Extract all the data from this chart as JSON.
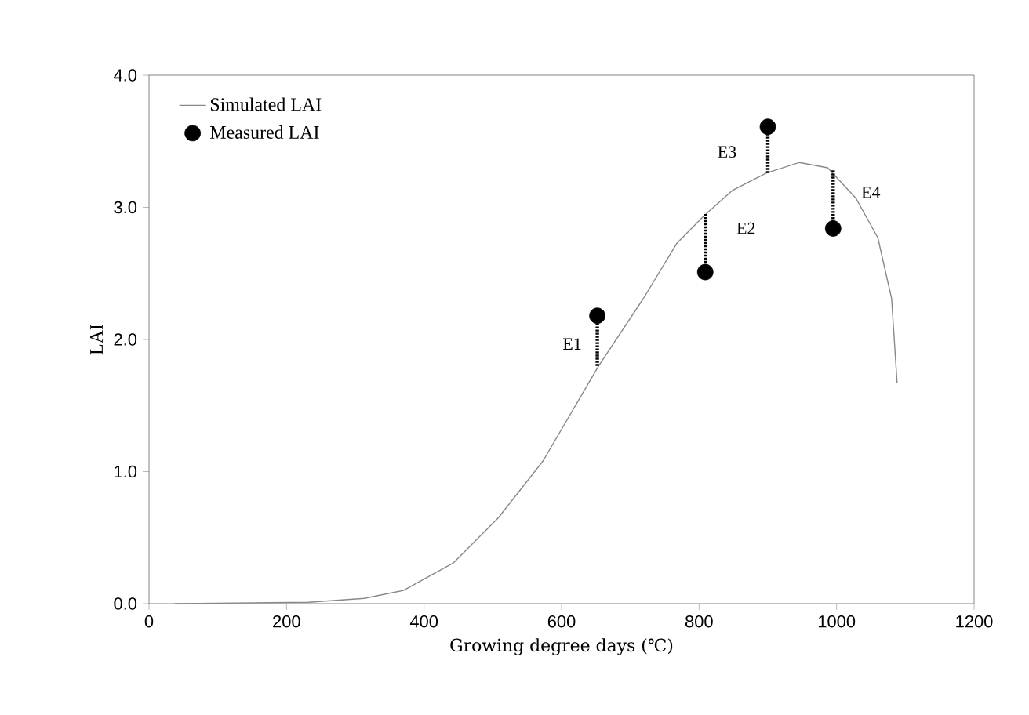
{
  "chart_data": {
    "type": "line",
    "xlabel": "Growing degree days (℃)",
    "ylabel": "LAI",
    "xlim": [
      0,
      1200
    ],
    "xticks": [
      0,
      200,
      400,
      600,
      800,
      1000,
      1200
    ],
    "ylim": [
      0,
      4
    ],
    "yticks": [
      {
        "value": 0,
        "label": "0.0"
      },
      {
        "value": 1,
        "label": "1.0"
      },
      {
        "value": 2,
        "label": "2.0"
      },
      {
        "value": 3,
        "label": "3.0"
      },
      {
        "value": 4,
        "label": "4.0"
      }
    ],
    "legend": "top left",
    "grid": false,
    "series": [
      {
        "name": "Simulated LAI",
        "color": "#888888",
        "marker": "none",
        "x": [
          37,
          232,
          313,
          370,
          443,
          508,
          573,
          654,
          719,
          768,
          808,
          849,
          898,
          946,
          987,
          1028,
          1060,
          1080,
          1088
        ],
        "values": [
          0,
          0.01,
          0.04,
          0.1,
          0.31,
          0.65,
          1.08,
          1.8,
          2.31,
          2.73,
          2.94,
          3.13,
          3.26,
          3.34,
          3.3,
          3.07,
          2.77,
          2.31,
          1.67
        ]
      },
      {
        "name": "Measured LAI",
        "type": "scatter",
        "color": "#000000",
        "marker": "circle",
        "x": [
          652,
          809,
          900,
          995
        ],
        "values": [
          2.18,
          2.51,
          3.61,
          2.84
        ],
        "errors": [
          [
            1.8,
            2.18
          ],
          [
            2.51,
            2.95
          ],
          [
            3.26,
            3.61
          ],
          [
            2.84,
            3.28
          ]
        ]
      }
    ],
    "annotations": [
      {
        "text": "E1",
        "x": 652,
        "y": 2.18
      },
      {
        "text": "E2",
        "x": 809,
        "y": 2.51
      },
      {
        "text": "E3",
        "x": 900,
        "y": 3.61
      },
      {
        "text": "E4",
        "x": 995,
        "y": 3.28
      }
    ]
  }
}
